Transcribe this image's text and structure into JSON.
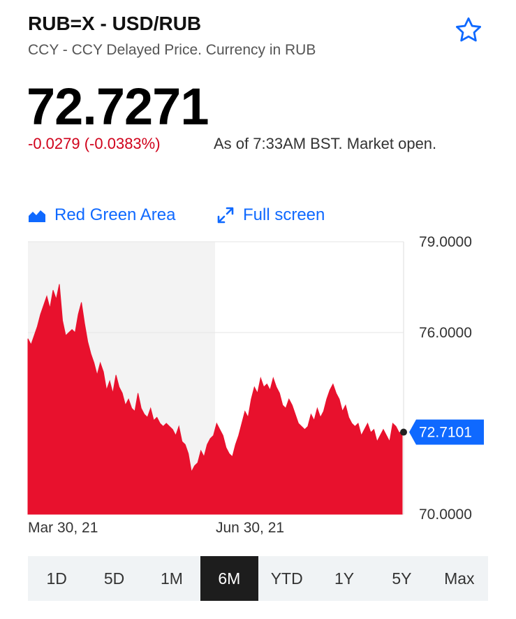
{
  "header": {
    "title": "RUB=X - USD/RUB",
    "subtitle": "CCY - CCY Delayed Price. Currency in RUB"
  },
  "quote": {
    "price": "72.7271",
    "change": "-0.0279 (-0.0383%)",
    "as_of": "As of 7:33AM BST. Market open."
  },
  "toolbar": {
    "chart_type_label": "Red Green Area",
    "fullscreen_label": "Full screen"
  },
  "colors": {
    "accent": "#0f69ff",
    "negative": "#d0021b",
    "area_fill": "#e8112d",
    "shade": "#f3f3f3",
    "active_tab_bg": "#1d1d1d"
  },
  "chart_data": {
    "type": "area",
    "y_tick_labels": [
      "79.0000",
      "76.0000",
      "70.0000"
    ],
    "y_ticks": [
      79,
      76,
      70
    ],
    "ylim": [
      70,
      79
    ],
    "x_tick_labels": [
      "Mar 30, 21",
      "Jun 30, 21"
    ],
    "current_label": "72.7101",
    "current_value": 72.7101,
    "grid": true,
    "series": [
      {
        "values": [
          75.8,
          75.6,
          75.9,
          76.2,
          76.6,
          76.9,
          77.2,
          76.8,
          77.4,
          77.1,
          77.6,
          76.4,
          75.9,
          76.0,
          76.1,
          76.0,
          76.6,
          77.0,
          76.3,
          75.7,
          75.3,
          75.0,
          74.6,
          75.0,
          74.7,
          74.1,
          74.4,
          74.0,
          74.6,
          74.2,
          74.0,
          73.6,
          73.8,
          73.5,
          73.4,
          74.0,
          73.5,
          73.3,
          73.2,
          73.5,
          73.1,
          73.2,
          73.0,
          72.9,
          73.0,
          72.9,
          72.8,
          72.6,
          72.9,
          72.4,
          72.3,
          72.0,
          71.4,
          71.6,
          71.7,
          72.1,
          71.9,
          72.3,
          72.5,
          72.6,
          73.0,
          72.8,
          72.6,
          72.2,
          72.0,
          71.9,
          72.3,
          72.6,
          73.0,
          73.4,
          73.2,
          73.8,
          74.2,
          74.0,
          74.5,
          74.2,
          74.3,
          74.1,
          74.5,
          74.2,
          74.0,
          73.6,
          73.5,
          73.8,
          73.6,
          73.3,
          73.0,
          72.9,
          72.8,
          72.9,
          73.3,
          73.1,
          73.5,
          73.2,
          73.4,
          73.8,
          74.1,
          74.3,
          74.0,
          73.8,
          73.4,
          73.6,
          73.2,
          73.0,
          72.9,
          73.0,
          72.6,
          72.8,
          73.0,
          72.7,
          72.8,
          72.4,
          72.6,
          72.8,
          72.6,
          72.4,
          73.0,
          72.9,
          72.7,
          72.71
        ]
      }
    ]
  },
  "range_tabs": [
    "1D",
    "5D",
    "1M",
    "6M",
    "YTD",
    "1Y",
    "5Y",
    "Max"
  ],
  "range_active_index": 3
}
